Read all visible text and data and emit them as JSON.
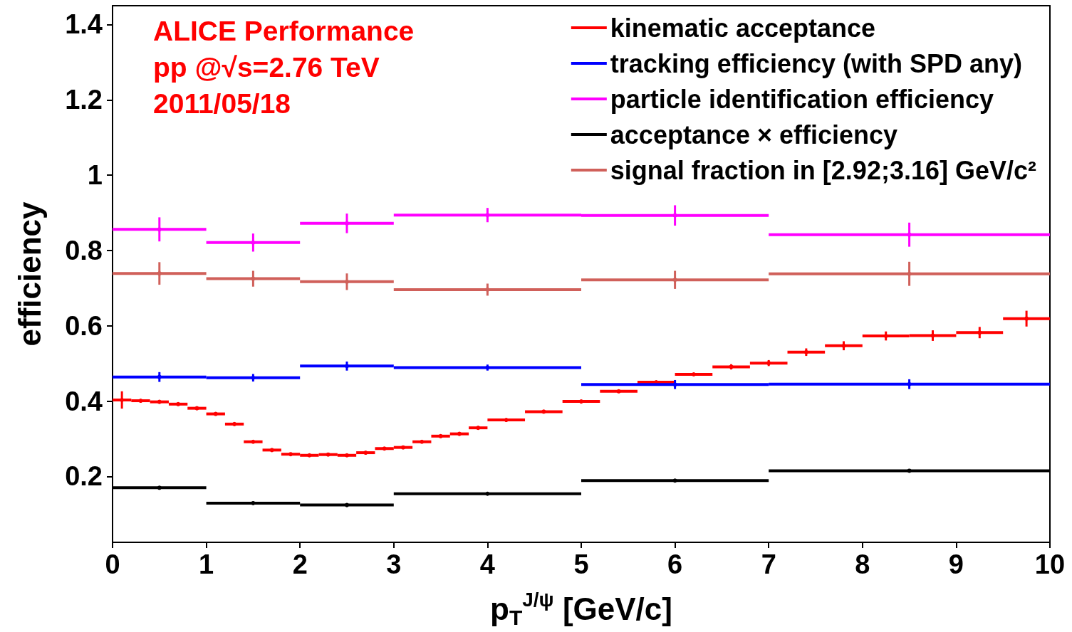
{
  "chart_data": {
    "type": "scatter",
    "xlabel": "p$_{T}$$^{J/ψ}$ [GeV/c]",
    "ylabel": "efficiency",
    "xlim": [
      0,
      10
    ],
    "xticks": [
      0,
      1,
      2,
      3,
      4,
      5,
      6,
      7,
      8,
      9,
      10
    ],
    "ylim": [
      0.025,
      1.45
    ],
    "yticks": [
      0.2,
      0.4,
      0.6,
      0.8,
      1,
      1.2,
      1.4
    ],
    "grid": false,
    "legend": "top right",
    "marker": "circle",
    "annotations": [
      "ALICE Performance",
      "pp @√s=2.76 TeV",
      "2011/05/18"
    ],
    "series": [
      {
        "name": "kinematic acceptance",
        "color": "#ff0000",
        "x": [
          0.1,
          0.3,
          0.5,
          0.7,
          0.9,
          1.1,
          1.3,
          1.5,
          1.7,
          1.9,
          2.1,
          2.3,
          2.5,
          2.7,
          2.9,
          3.1,
          3.3,
          3.5,
          3.7,
          3.9,
          4.2,
          4.6,
          5.0,
          5.4,
          5.8,
          6.2,
          6.6,
          7.0,
          7.4,
          7.8,
          8.25,
          8.75,
          9.25,
          9.75
        ],
        "values": [
          0.403,
          0.401,
          0.398,
          0.392,
          0.381,
          0.366,
          0.339,
          0.292,
          0.27,
          0.259,
          0.256,
          0.258,
          0.256,
          0.263,
          0.274,
          0.277,
          0.292,
          0.307,
          0.313,
          0.329,
          0.35,
          0.372,
          0.399,
          0.426,
          0.45,
          0.471,
          0.491,
          0.501,
          0.53,
          0.547,
          0.573,
          0.574,
          0.582,
          0.619
        ],
        "xerrors": [
          0.1,
          0.1,
          0.1,
          0.1,
          0.1,
          0.1,
          0.1,
          0.1,
          0.1,
          0.1,
          0.1,
          0.1,
          0.1,
          0.1,
          0.1,
          0.1,
          0.1,
          0.1,
          0.1,
          0.1,
          0.2,
          0.2,
          0.2,
          0.2,
          0.2,
          0.2,
          0.2,
          0.2,
          0.2,
          0.2,
          0.25,
          0.25,
          0.25,
          0.25
        ],
        "errors": [
          0.023,
          null,
          null,
          null,
          null,
          null,
          null,
          null,
          null,
          null,
          null,
          null,
          null,
          null,
          null,
          null,
          null,
          null,
          null,
          null,
          null,
          null,
          null,
          null,
          null,
          null,
          0.007,
          0.008,
          0.01,
          0.012,
          0.012,
          0.014,
          0.015,
          0.021
        ]
      },
      {
        "name": "tracking efficiency (with SPD any)",
        "color": "#0000ff",
        "x": [
          0.5,
          1.5,
          2.5,
          4,
          6,
          8.5
        ],
        "values": [
          0.464,
          0.462,
          0.493,
          0.489,
          0.444,
          0.445
        ],
        "xerrors": [
          0.5,
          0.5,
          0.5,
          1,
          1,
          1.5
        ],
        "errors": [
          0.013,
          0.01,
          0.012,
          0.008,
          0.012,
          0.013
        ]
      },
      {
        "name": "particle identification efficiency",
        "color": "#ff00ff",
        "x": [
          0.5,
          1.5,
          2.5,
          4,
          6,
          8.5
        ],
        "values": [
          0.856,
          0.821,
          0.872,
          0.894,
          0.893,
          0.842
        ],
        "xerrors": [
          0.5,
          0.5,
          0.5,
          1,
          1,
          1.5
        ],
        "errors": [
          0.032,
          0.024,
          0.026,
          0.019,
          0.027,
          0.032
        ]
      },
      {
        "name": "acceptance × efficiency",
        "color": "#000000",
        "x": [
          0.5,
          1.5,
          2.5,
          4,
          6,
          8.5
        ],
        "values": [
          0.17,
          0.129,
          0.124,
          0.154,
          0.189,
          0.215
        ],
        "xerrors": [
          0.5,
          0.5,
          0.5,
          1,
          1,
          1.5
        ]
      },
      {
        "name": "signal fraction in [2.92;3.16] GeV/c²",
        "color": "#d0605a",
        "x": [
          0.5,
          1.5,
          2.5,
          4,
          6,
          8.5
        ],
        "values": [
          0.739,
          0.725,
          0.717,
          0.696,
          0.722,
          0.738
        ],
        "xerrors": [
          0.5,
          0.5,
          0.5,
          1,
          1,
          1.5
        ],
        "errors": [
          0.03,
          0.021,
          0.022,
          0.016,
          0.024,
          0.032
        ]
      }
    ]
  }
}
